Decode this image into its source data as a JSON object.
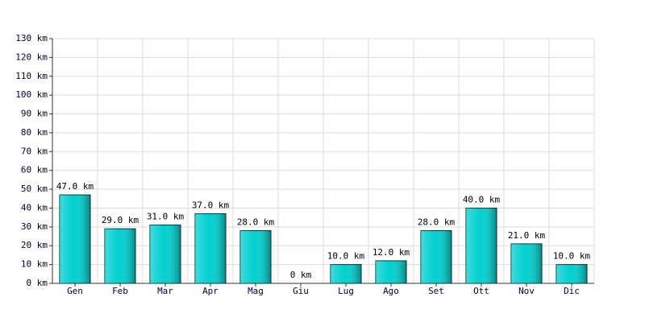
{
  "chart_data": {
    "type": "bar",
    "categories": [
      "Gen",
      "Feb",
      "Mar",
      "Apr",
      "Mag",
      "Giu",
      "Lug",
      "Ago",
      "Set",
      "Ott",
      "Nov",
      "Dic"
    ],
    "values": [
      47,
      29,
      31,
      37,
      28,
      0,
      10,
      12,
      28,
      40,
      21,
      10
    ],
    "value_labels": [
      "47.0 km",
      "29.0 km",
      "31.0 km",
      "37.0 km",
      "28.0 km",
      "0 km",
      "10.0 km",
      "12.0 km",
      "28.0 km",
      "40.0 km",
      "21.0 km",
      "10.0 km"
    ],
    "color": "#00d0d0",
    "ylim": [
      0,
      130
    ],
    "yticks": [
      {
        "value": 0,
        "label": "0 km"
      },
      {
        "value": 10,
        "label": "10 km"
      },
      {
        "value": 20,
        "label": "20 km"
      },
      {
        "value": 30,
        "label": "30 km"
      },
      {
        "value": 40,
        "label": "40 km"
      },
      {
        "value": 50,
        "label": "50 km"
      },
      {
        "value": 60,
        "label": "60 km"
      },
      {
        "value": 70,
        "label": "70 km"
      },
      {
        "value": 80,
        "label": "80 km"
      },
      {
        "value": 90,
        "label": "90 km"
      },
      {
        "value": 100,
        "label": "100 km"
      },
      {
        "value": 110,
        "label": "110 km"
      },
      {
        "value": 120,
        "label": "120 km"
      },
      {
        "value": 130,
        "label": "130 km"
      }
    ],
    "grid": true
  }
}
